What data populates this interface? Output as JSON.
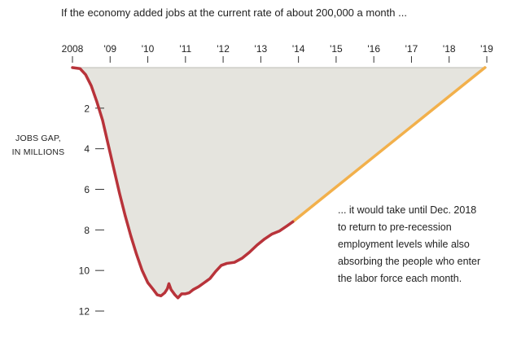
{
  "chart_data": {
    "type": "area",
    "subtitle": "If the economy added jobs at the current rate of about 200,000 a month ...",
    "ylabel": [
      "JOBS GAP,",
      "IN MILLIONS"
    ],
    "x_tick_labels": [
      "2008",
      "'09",
      "'10",
      "'11",
      "'12",
      "'13",
      "'14",
      "'15",
      "'16",
      "'17",
      "'18",
      "'19"
    ],
    "x_ticks": [
      2008,
      2009,
      2010,
      2011,
      2012,
      2013,
      2014,
      2015,
      2016,
      2017,
      2018,
      2019
    ],
    "xlim": [
      2008,
      2019
    ],
    "y_ticks": [
      2,
      4,
      6,
      8,
      10,
      12
    ],
    "y_tick_labels": [
      "2",
      "4",
      "6",
      "8",
      "10",
      "12"
    ],
    "ylim": [
      0,
      12
    ],
    "y_inverted": true,
    "series": [
      {
        "kind": "actual",
        "color": "#b8333a",
        "points": [
          [
            2008.0,
            0.0
          ],
          [
            2008.2,
            0.05
          ],
          [
            2008.35,
            0.35
          ],
          [
            2008.5,
            0.9
          ],
          [
            2008.65,
            1.7
          ],
          [
            2008.8,
            2.6
          ],
          [
            2008.95,
            3.8
          ],
          [
            2009.1,
            5.0
          ],
          [
            2009.25,
            6.2
          ],
          [
            2009.4,
            7.3
          ],
          [
            2009.55,
            8.3
          ],
          [
            2009.7,
            9.2
          ],
          [
            2009.85,
            10.0
          ],
          [
            2010.0,
            10.6
          ],
          [
            2010.15,
            10.95
          ],
          [
            2010.25,
            11.2
          ],
          [
            2010.35,
            11.25
          ],
          [
            2010.45,
            11.1
          ],
          [
            2010.52,
            10.9
          ],
          [
            2010.56,
            10.65
          ],
          [
            2010.62,
            10.95
          ],
          [
            2010.72,
            11.2
          ],
          [
            2010.8,
            11.35
          ],
          [
            2010.9,
            11.15
          ],
          [
            2011.0,
            11.15
          ],
          [
            2011.1,
            11.1
          ],
          [
            2011.2,
            10.95
          ],
          [
            2011.35,
            10.8
          ],
          [
            2011.5,
            10.6
          ],
          [
            2011.65,
            10.4
          ],
          [
            2011.8,
            10.05
          ],
          [
            2011.95,
            9.75
          ],
          [
            2012.1,
            9.65
          ],
          [
            2012.3,
            9.6
          ],
          [
            2012.5,
            9.4
          ],
          [
            2012.7,
            9.1
          ],
          [
            2012.9,
            8.75
          ],
          [
            2013.1,
            8.45
          ],
          [
            2013.3,
            8.2
          ],
          [
            2013.5,
            8.05
          ],
          [
            2013.7,
            7.8
          ],
          [
            2013.85,
            7.6
          ]
        ]
      },
      {
        "kind": "projection",
        "color": "#f2b04b",
        "points": [
          [
            2013.85,
            7.6
          ],
          [
            2018.95,
            0.0
          ]
        ]
      }
    ],
    "area_fill": "#e5e4de",
    "annotation": [
      "... it would take until Dec. 2018",
      "to return to pre-recession",
      "employment levels while also",
      "absorbing the people who enter",
      "the labor force each month."
    ]
  }
}
